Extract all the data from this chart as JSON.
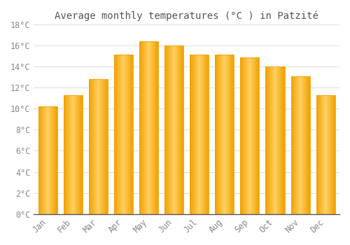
{
  "title": "Average monthly temperatures (°C ) in Patzité",
  "months": [
    "Jan",
    "Feb",
    "Mar",
    "Apr",
    "May",
    "Jun",
    "Jul",
    "Aug",
    "Sep",
    "Oct",
    "Nov",
    "Dec"
  ],
  "values": [
    10.2,
    11.3,
    12.8,
    15.1,
    16.4,
    16.0,
    15.1,
    15.1,
    14.9,
    14.0,
    13.1,
    11.3
  ],
  "bar_color_center": "#FFD060",
  "bar_color_edge": "#F0A000",
  "background_color": "#FFFFFF",
  "grid_color": "#DDDDDD",
  "text_color": "#888888",
  "title_color": "#555555",
  "ylim": [
    0,
    18
  ],
  "ytick_step": 2,
  "title_fontsize": 10,
  "tick_fontsize": 8.5,
  "font_family": "monospace"
}
